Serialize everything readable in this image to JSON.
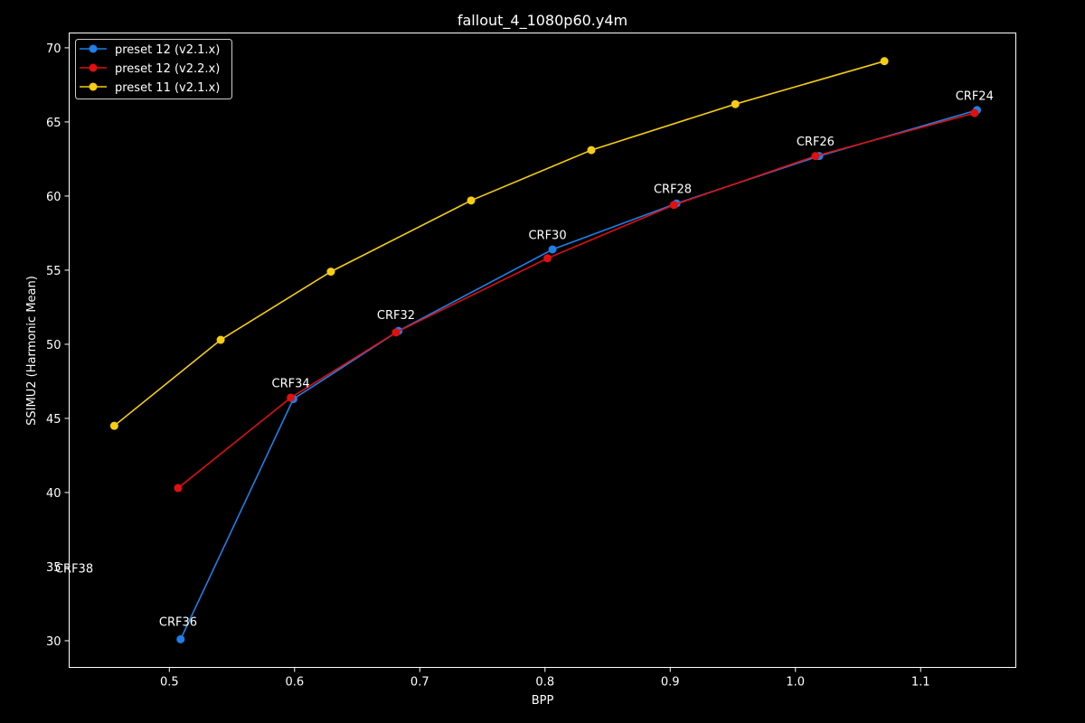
{
  "chart_data": {
    "type": "line",
    "title": "fallout_4_1080p60.y4m",
    "xlabel": "BPP",
    "ylabel": "SSIMU2 (Harmonic Mean)",
    "xlim": [
      0.42,
      1.176
    ],
    "ylim": [
      28.2,
      71.0
    ],
    "x_ticks": [
      0.5,
      0.6,
      0.7,
      0.8,
      0.9,
      1.0,
      1.1
    ],
    "x_tick_labels": [
      "0.5",
      "0.6",
      "0.7",
      "0.8",
      "0.9",
      "1.0",
      "1.1"
    ],
    "y_ticks": [
      30,
      35,
      40,
      45,
      50,
      55,
      60,
      65,
      70
    ],
    "y_tick_labels": [
      "30",
      "35",
      "40",
      "45",
      "50",
      "55",
      "60",
      "65",
      "70"
    ],
    "grid": false,
    "legend_position": "top-left",
    "series": [
      {
        "name": "preset 12 (v2.1.x)",
        "color": "#1f7fe6",
        "x": [
          0.509,
          0.599,
          0.683,
          0.806,
          0.905,
          1.019,
          1.145
        ],
        "y": [
          30.1,
          46.3,
          50.9,
          56.4,
          59.5,
          62.7,
          65.8
        ]
      },
      {
        "name": "preset 12 (v2.2.x)",
        "color": "#e01010",
        "x": [
          0.507,
          0.597,
          0.681,
          0.802,
          0.903,
          1.016,
          1.143
        ],
        "y": [
          40.3,
          46.4,
          50.8,
          55.8,
          59.4,
          62.7,
          65.6
        ]
      },
      {
        "name": "preset 11 (v2.1.x)",
        "color": "#f5cd13",
        "x": [
          0.456,
          0.541,
          0.629,
          0.741,
          0.837,
          0.952,
          1.071
        ],
        "y": [
          44.5,
          50.3,
          54.9,
          59.7,
          63.1,
          66.2,
          69.1
        ]
      }
    ],
    "annotations": [
      {
        "text": "CRF24",
        "x": 1.143,
        "y": 66.5
      },
      {
        "text": "CRF26",
        "x": 1.016,
        "y": 63.4
      },
      {
        "text": "CRF28",
        "x": 0.902,
        "y": 60.2
      },
      {
        "text": "CRF30",
        "x": 0.802,
        "y": 57.1
      },
      {
        "text": "CRF32",
        "x": 0.681,
        "y": 51.7
      },
      {
        "text": "CRF34",
        "x": 0.597,
        "y": 47.1
      },
      {
        "text": "CRF36",
        "x": 0.507,
        "y": 31.0
      },
      {
        "text": "CRF38",
        "x": 0.424,
        "y": 34.6
      }
    ]
  }
}
